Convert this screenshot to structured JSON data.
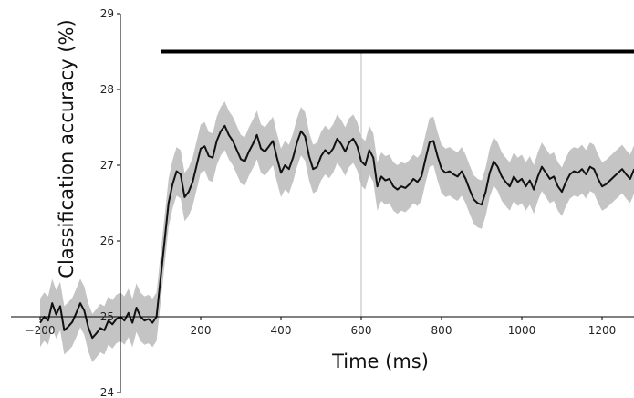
{
  "chart_data": {
    "type": "line",
    "title": "",
    "xlabel": "Time (ms)",
    "ylabel": "Classification accuracy (%)",
    "xlim": [
      -220,
      1280
    ],
    "ylim": [
      24,
      29
    ],
    "x_axis_crosses_y_at": 25,
    "xticks": [
      -200,
      0,
      200,
      400,
      600,
      800,
      1000,
      1200
    ],
    "xtick_labels": [
      "−200",
      "0",
      "200",
      "400",
      "600",
      "800",
      "1000",
      "1200"
    ],
    "yticks": [
      24,
      25,
      26,
      27,
      28,
      29
    ],
    "ytick_labels": [
      "24",
      "25",
      "26",
      "27",
      "28",
      "29"
    ],
    "vertical_marker_x": 600,
    "significance_bar": {
      "x_start": 100,
      "x_end": 1280,
      "y": 28.5
    },
    "grid": false,
    "colors": {
      "mean_line": "#111111",
      "error_band": "#c4c4c4",
      "significance_bar": "#000000",
      "marker_line": "#bbbbbb",
      "axis": "#000000"
    },
    "series": [
      {
        "x": [
          -200,
          -190,
          -180,
          -170,
          -160,
          -150,
          -140,
          -130,
          -120,
          -110,
          -100,
          -90,
          -80,
          -70,
          -60,
          -50,
          -40,
          -30,
          -20,
          -10,
          0,
          10,
          20,
          30,
          40,
          50,
          60,
          70,
          80,
          90,
          100,
          110,
          120,
          130,
          140,
          150,
          160,
          170,
          180,
          190,
          200,
          210,
          220,
          230,
          240,
          250,
          260,
          270,
          280,
          290,
          300,
          310,
          320,
          330,
          340,
          350,
          360,
          370,
          380,
          390,
          400,
          410,
          420,
          430,
          440,
          450,
          460,
          470,
          480,
          490,
          500,
          510,
          520,
          530,
          540,
          550,
          560,
          570,
          580,
          590,
          600,
          610,
          620,
          630,
          640,
          650,
          660,
          670,
          680,
          690,
          700,
          710,
          720,
          730,
          740,
          750,
          760,
          770,
          780,
          790,
          800,
          810,
          820,
          830,
          840,
          850,
          860,
          870,
          880,
          890,
          900,
          910,
          920,
          930,
          940,
          950,
          960,
          970,
          980,
          990,
          1000,
          1010,
          1020,
          1030,
          1040,
          1050,
          1060,
          1070,
          1080,
          1090,
          1100,
          1110,
          1120,
          1130,
          1140,
          1150,
          1160,
          1170,
          1180,
          1190,
          1200,
          1210,
          1220,
          1230,
          1240,
          1250,
          1260,
          1270,
          1280
        ],
        "y": [
          24.92,
          25.0,
          24.95,
          25.18,
          25.03,
          25.14,
          24.82,
          24.87,
          24.93,
          25.05,
          25.18,
          25.08,
          24.86,
          24.72,
          24.78,
          24.85,
          24.82,
          24.95,
          24.9,
          24.97,
          25.0,
          24.95,
          25.05,
          24.92,
          25.12,
          25.0,
          24.95,
          24.97,
          24.92,
          25.0,
          25.5,
          26.0,
          26.5,
          26.75,
          26.92,
          26.88,
          26.58,
          26.65,
          26.78,
          27.0,
          27.22,
          27.25,
          27.12,
          27.1,
          27.32,
          27.45,
          27.52,
          27.4,
          27.32,
          27.2,
          27.08,
          27.05,
          27.18,
          27.28,
          27.4,
          27.22,
          27.18,
          27.25,
          27.32,
          27.1,
          26.9,
          27.0,
          26.95,
          27.1,
          27.3,
          27.45,
          27.38,
          27.12,
          26.95,
          26.98,
          27.12,
          27.2,
          27.15,
          27.22,
          27.35,
          27.28,
          27.18,
          27.3,
          27.35,
          27.25,
          27.05,
          27.0,
          27.2,
          27.1,
          26.72,
          26.85,
          26.8,
          26.82,
          26.72,
          26.68,
          26.72,
          26.7,
          26.75,
          26.82,
          26.78,
          26.85,
          27.08,
          27.3,
          27.32,
          27.12,
          26.95,
          26.9,
          26.92,
          26.88,
          26.85,
          26.92,
          26.82,
          26.68,
          26.55,
          26.5,
          26.48,
          26.65,
          26.9,
          27.05,
          26.98,
          26.85,
          26.78,
          26.72,
          26.85,
          26.78,
          26.82,
          26.72,
          26.8,
          26.68,
          26.85,
          26.98,
          26.9,
          26.82,
          26.85,
          26.72,
          26.65,
          26.78,
          26.88,
          26.92,
          26.9,
          26.95,
          26.88,
          26.98,
          26.95,
          26.82,
          26.72,
          26.75,
          26.8,
          26.85,
          26.9,
          26.95,
          26.88,
          26.82,
          26.95
        ],
        "band_half_width": 0.32
      }
    ]
  }
}
